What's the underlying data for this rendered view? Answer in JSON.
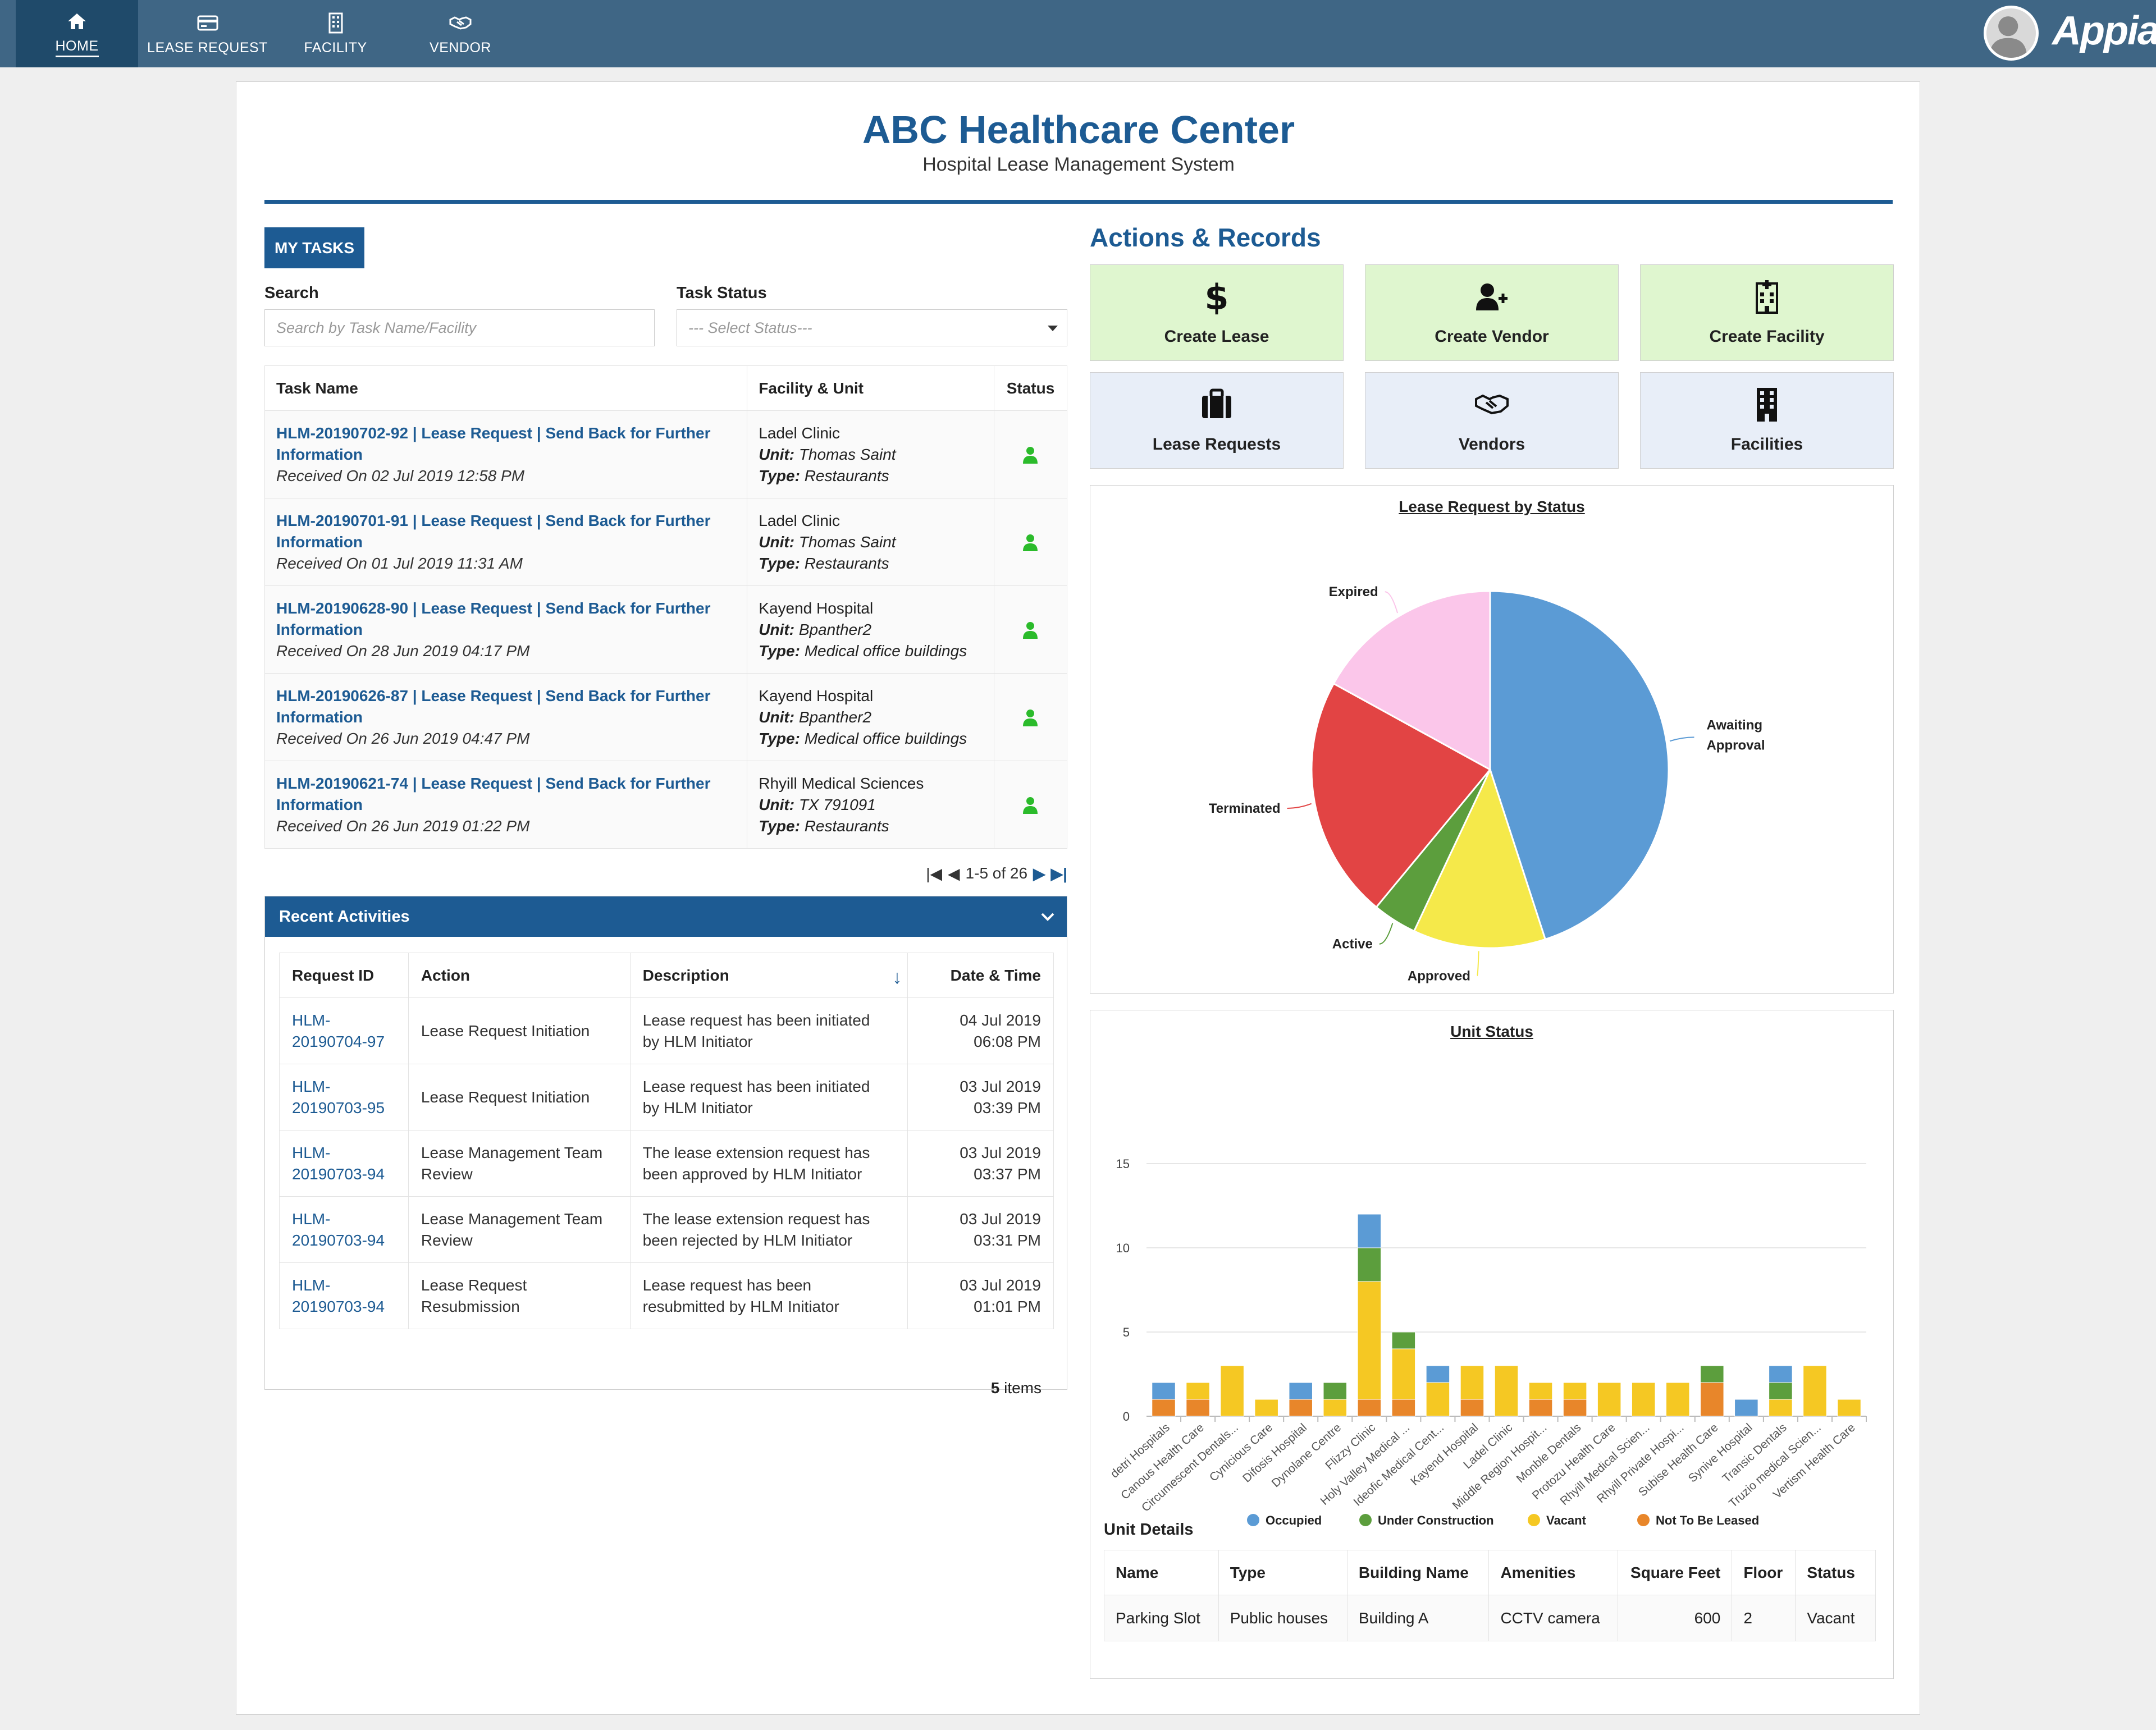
{
  "nav": {
    "items": [
      {
        "label": "HOME",
        "icon": "home-icon"
      },
      {
        "label": "LEASE REQUEST",
        "icon": "credit-card-icon"
      },
      {
        "label": "FACILITY",
        "icon": "building-icon"
      },
      {
        "label": "VENDOR",
        "icon": "handshake-icon"
      }
    ],
    "brand": "Appian"
  },
  "header": {
    "title": "ABC Healthcare Center",
    "subtitle": "Hospital Lease Management System"
  },
  "tasks": {
    "button": "MY TASKS",
    "search_label": "Search",
    "search_placeholder": "Search by Task Name/Facility",
    "status_label": "Task Status",
    "status_placeholder": "--- Select Status---",
    "columns": [
      "Task Name",
      "Facility & Unit",
      "Status"
    ],
    "unit_label": "Unit:",
    "type_label": "Type:",
    "rows": [
      {
        "name_line1": "HLM-20190702-92 | Lease Request | Send Back for Further",
        "name_line2": "Information",
        "received": "Received On 02 Jul 2019 12:58 PM",
        "facility": "Ladel Clinic",
        "unit": "Thomas Saint",
        "type": "Restaurants"
      },
      {
        "name_line1": "HLM-20190701-91 | Lease Request | Send Back for Further",
        "name_line2": "Information",
        "received": "Received On 01 Jul 2019 11:31 AM",
        "facility": "Ladel Clinic",
        "unit": "Thomas Saint",
        "type": "Restaurants"
      },
      {
        "name_line1": "HLM-20190628-90 | Lease Request | Send Back for Further",
        "name_line2": "Information",
        "received": "Received On 28 Jun 2019 04:17 PM",
        "facility": "Kayend Hospital",
        "unit": "Bpanther2",
        "type": "Medical office buildings"
      },
      {
        "name_line1": "HLM-20190626-87 | Lease Request | Send Back for Further",
        "name_line2": "Information",
        "received": "Received On 26 Jun 2019 04:47 PM",
        "facility": "Kayend Hospital",
        "unit": "Bpanther2",
        "type": "Medical office buildings"
      },
      {
        "name_line1": "HLM-20190621-74 | Lease Request | Send Back for Further",
        "name_line2": "Information",
        "received": "Received On 26 Jun 2019 01:22 PM",
        "facility": "Rhyill Medical Sciences",
        "unit": "TX 791091",
        "type": "Restaurants"
      }
    ],
    "pagination": "1-5 of 26"
  },
  "recent": {
    "title": "Recent Activities",
    "columns": [
      "Request ID",
      "Action",
      "Description",
      "Date & Time"
    ],
    "rows": [
      {
        "id1": "HLM-",
        "id2": "20190704-97",
        "action1": "Lease Request Initiation",
        "action2": "",
        "desc1": "Lease request has been initiated",
        "desc2": "by HLM Initiator",
        "date": "04 Jul 2019",
        "time": "06:08 PM"
      },
      {
        "id1": "HLM-",
        "id2": "20190703-95",
        "action1": "Lease Request Initiation",
        "action2": "",
        "desc1": "Lease request has been initiated",
        "desc2": "by HLM Initiator",
        "date": "03 Jul 2019",
        "time": "03:39 PM"
      },
      {
        "id1": "HLM-",
        "id2": "20190703-94",
        "action1": "Lease Management Team",
        "action2": "Review",
        "desc1": "The lease extension request has",
        "desc2": "been approved by HLM Initiator",
        "date": "03 Jul 2019",
        "time": "03:37 PM"
      },
      {
        "id1": "HLM-",
        "id2": "20190703-94",
        "action1": "Lease Management Team",
        "action2": "Review",
        "desc1": "The lease extension request has",
        "desc2": "been rejected by HLM Initiator",
        "date": "03 Jul 2019",
        "time": "03:31 PM"
      },
      {
        "id1": "HLM-",
        "id2": "20190703-94",
        "action1": "Lease Request",
        "action2": "Resubmission",
        "desc1": "Lease request has been",
        "desc2": "resubmitted by HLM Initiator",
        "date": "03 Jul 2019",
        "time": "01:01 PM"
      }
    ],
    "items_count": "5",
    "items_label": "items"
  },
  "actions": {
    "title": "Actions & Records",
    "tiles": [
      {
        "label": "Create Lease",
        "icon": "dollar-icon"
      },
      {
        "label": "Create Vendor",
        "icon": "add-user-icon"
      },
      {
        "label": "Create Facility",
        "icon": "hospital-icon"
      },
      {
        "label": "Lease Requests",
        "icon": "briefcase-icon"
      },
      {
        "label": "Vendors",
        "icon": "handshake-icon"
      },
      {
        "label": "Facilities",
        "icon": "building-icon"
      }
    ],
    "colors": {
      "create_bg": "#dff6cf",
      "records_bg": "#e8eef8"
    }
  },
  "chart_data": [
    {
      "type": "pie",
      "title": "Lease Request by Status",
      "slices": [
        {
          "label": "Awaiting Approval",
          "value": 45,
          "color": "#5b9bd5"
        },
        {
          "label": "Approved",
          "value": 12,
          "color": "#f5e94a"
        },
        {
          "label": "Active",
          "value": 4,
          "color": "#5c9e3d"
        },
        {
          "label": "Terminated",
          "value": 22,
          "color": "#e24444"
        },
        {
          "label": "Expired",
          "value": 17,
          "color": "#fbc6ea"
        }
      ]
    },
    {
      "type": "bar",
      "stacked": true,
      "title": "Unit Status",
      "ylim": [
        0,
        15
      ],
      "yticks": [
        0,
        5,
        10,
        15
      ],
      "legend_position": "bottom",
      "categories": [
        "detri Hospitals",
        "Canous Health Care",
        "Circumescent Dentals...",
        "Cynicious Care",
        "Difosis Hospital",
        "Dynolane Centre",
        "Flizzy Clinic",
        "Holy Valley Medical ...",
        "Ideofic Medical Cent...",
        "Kayend Hospital",
        "Ladel Clinic",
        "Middle Region Hospit...",
        "Monble Dentals",
        "Protozu Health Care",
        "Rhyill Medical Scien...",
        "Rhyill Private Hospi...",
        "Subise Health Care",
        "Synive Hospital",
        "Transic Dentals",
        "Truzio medical Scien...",
        "Vertism Health Care"
      ],
      "series": [
        {
          "name": "Not To Be Leased",
          "color": "#e8862a",
          "values": [
            1,
            1,
            0,
            0,
            1,
            0,
            1,
            1,
            0,
            1,
            0,
            1,
            1,
            0,
            0,
            0,
            2,
            0,
            0,
            0,
            0
          ]
        },
        {
          "name": "Vacant",
          "color": "#f5c823",
          "values": [
            0,
            1,
            3,
            1,
            0,
            1,
            7,
            3,
            2,
            2,
            3,
            1,
            1,
            2,
            2,
            2,
            0,
            0,
            1,
            3,
            1
          ]
        },
        {
          "name": "Under Construction",
          "color": "#5c9e3d",
          "values": [
            0,
            0,
            0,
            0,
            0,
            1,
            2,
            1,
            0,
            0,
            0,
            0,
            0,
            0,
            0,
            0,
            1,
            0,
            1,
            0,
            0
          ]
        },
        {
          "name": "Occupied",
          "color": "#5b9bd5",
          "values": [
            1,
            0,
            0,
            0,
            1,
            0,
            2,
            0,
            1,
            0,
            0,
            0,
            0,
            0,
            0,
            0,
            0,
            1,
            1,
            0,
            0
          ]
        }
      ],
      "legend": [
        "Occupied",
        "Under Construction",
        "Vacant",
        "Not To Be Leased"
      ]
    }
  ],
  "unit_details": {
    "title": "Unit Details",
    "columns": [
      "Name",
      "Type",
      "Building Name",
      "Amenities",
      "Square Feet",
      "Floor",
      "Status"
    ],
    "row": {
      "name": "Parking Slot",
      "type": "Public houses",
      "building": "Building A",
      "amenities": "CCTV camera",
      "sqft": "600",
      "floor": "2",
      "status": "Vacant"
    }
  }
}
